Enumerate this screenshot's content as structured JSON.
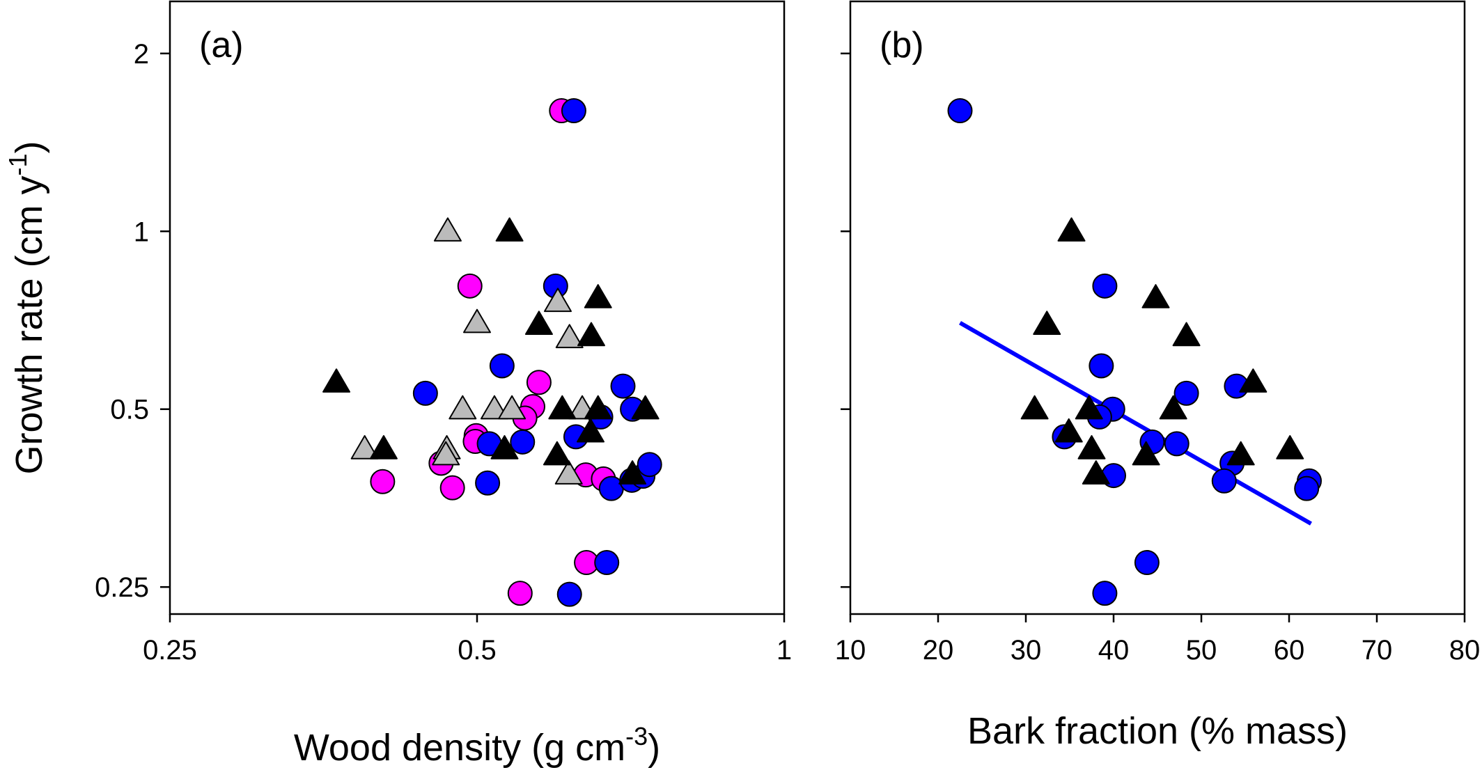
{
  "chart_data": [
    {
      "type": "scatter",
      "panel_label": "(a)",
      "x_scale": "log",
      "y_scale": "log",
      "xlim": [
        0.25,
        1
      ],
      "ylim": [
        0.225,
        2.45
      ],
      "xticks": [
        0.25,
        0.5,
        1
      ],
      "xtick_labels": [
        "0.25",
        "0.5",
        "1"
      ],
      "yticks": [
        0.25,
        0.5,
        1,
        2
      ],
      "ytick_labels": [
        "0.25",
        "0.5",
        "1",
        "2"
      ],
      "xlabel": "Wood density (g cm",
      "xlabel_sup": "-3",
      "xlabel_end": ")",
      "ylabel": "Growth rate (cm y",
      "ylabel_sup": "-1",
      "ylabel_end": ")",
      "colors": {
        "magenta": "#ff00ff",
        "blue": "#0000ff",
        "gray": "#bbbbbb",
        "black": "#000000"
      },
      "series": [
        {
          "marker": "circle",
          "color": "#ff00ff",
          "points": [
            [
              0.605,
              1.6
            ],
            [
              0.492,
              0.808
            ],
            [
              0.575,
              0.555
            ],
            [
              0.567,
              0.505
            ],
            [
              0.557,
              0.483
            ],
            [
              0.499,
              0.451
            ],
            [
              0.498,
              0.441
            ],
            [
              0.461,
              0.405
            ],
            [
              0.404,
              0.377
            ],
            [
              0.473,
              0.368
            ],
            [
              0.639,
              0.387
            ],
            [
              0.665,
              0.381
            ],
            [
              0.64,
              0.275
            ],
            [
              0.551,
              0.244
            ]
          ]
        },
        {
          "marker": "circle",
          "color": "#0000ff",
          "points": [
            [
              0.622,
              1.6
            ],
            [
              0.597,
              0.808
            ],
            [
              0.529,
              0.592
            ],
            [
              0.445,
              0.532
            ],
            [
              0.695,
              0.547
            ],
            [
              0.661,
              0.485
            ],
            [
              0.71,
              0.5
            ],
            [
              0.625,
              0.449
            ],
            [
              0.514,
              0.437
            ],
            [
              0.554,
              0.44
            ],
            [
              0.512,
              0.375
            ],
            [
              0.677,
              0.367
            ],
            [
              0.709,
              0.379
            ],
            [
              0.727,
              0.385
            ],
            [
              0.738,
              0.403
            ],
            [
              0.67,
              0.275
            ],
            [
              0.616,
              0.243
            ]
          ]
        },
        {
          "marker": "triangle",
          "color": "#bbbbbb",
          "points": [
            [
              0.468,
              1.0
            ],
            [
              0.5,
              0.7
            ],
            [
              0.6,
              0.76
            ],
            [
              0.616,
              0.66
            ],
            [
              0.484,
              0.5
            ],
            [
              0.52,
              0.5
            ],
            [
              0.541,
              0.5
            ],
            [
              0.634,
              0.5
            ],
            [
              0.388,
              0.428
            ],
            [
              0.467,
              0.428
            ],
            [
              0.466,
              0.418
            ],
            [
              0.615,
              0.388
            ]
          ]
        },
        {
          "marker": "triangle",
          "color": "#000000",
          "points": [
            [
              0.538,
              1.0
            ],
            [
              0.657,
              0.771
            ],
            [
              0.575,
              0.695
            ],
            [
              0.647,
              0.665
            ],
            [
              0.364,
              0.555
            ],
            [
              0.606,
              0.5
            ],
            [
              0.657,
              0.5
            ],
            [
              0.731,
              0.5
            ],
            [
              0.405,
              0.428
            ],
            [
              0.532,
              0.428
            ],
            [
              0.599,
              0.418
            ],
            [
              0.646,
              0.457
            ],
            [
              0.71,
              0.388
            ]
          ]
        }
      ]
    },
    {
      "type": "scatter",
      "panel_label": "(b)",
      "x_scale": "linear",
      "y_scale": "log",
      "xlim": [
        10,
        80
      ],
      "ylim": [
        0.225,
        2.45
      ],
      "xticks": [
        10,
        20,
        30,
        40,
        50,
        60,
        70,
        80
      ],
      "xtick_labels": [
        "10",
        "20",
        "30",
        "40",
        "50",
        "60",
        "70",
        "80"
      ],
      "yticks": [
        0.25,
        0.5,
        1,
        2
      ],
      "xlabel": "Bark fraction (% mass)",
      "series": [
        {
          "marker": "circle",
          "color": "#0000ff",
          "points": [
            [
              22.5,
              1.6
            ],
            [
              39.0,
              0.808
            ],
            [
              38.6,
              0.592
            ],
            [
              48.3,
              0.532
            ],
            [
              54.0,
              0.547
            ],
            [
              39.9,
              0.5
            ],
            [
              38.4,
              0.485
            ],
            [
              34.4,
              0.449
            ],
            [
              44.4,
              0.44
            ],
            [
              47.2,
              0.437
            ],
            [
              40.0,
              0.386
            ],
            [
              53.5,
              0.405
            ],
            [
              52.6,
              0.378
            ],
            [
              62.3,
              0.378
            ],
            [
              62.0,
              0.367
            ],
            [
              43.8,
              0.275
            ],
            [
              39.0,
              0.244
            ]
          ]
        },
        {
          "marker": "triangle",
          "color": "#000000",
          "points": [
            [
              35.2,
              1.0
            ],
            [
              44.8,
              0.771
            ],
            [
              32.4,
              0.695
            ],
            [
              48.3,
              0.665
            ],
            [
              55.9,
              0.555
            ],
            [
              31.0,
              0.5
            ],
            [
              37.2,
              0.5
            ],
            [
              46.8,
              0.5
            ],
            [
              34.9,
              0.457
            ],
            [
              37.5,
              0.428
            ],
            [
              43.7,
              0.418
            ],
            [
              54.5,
              0.418
            ],
            [
              60.1,
              0.428
            ],
            [
              38.0,
              0.388
            ]
          ]
        }
      ],
      "fit_line": {
        "color": "#0000ff",
        "x": [
          22.5,
          62.5
        ],
        "y": [
          0.7,
          0.32
        ]
      }
    }
  ]
}
